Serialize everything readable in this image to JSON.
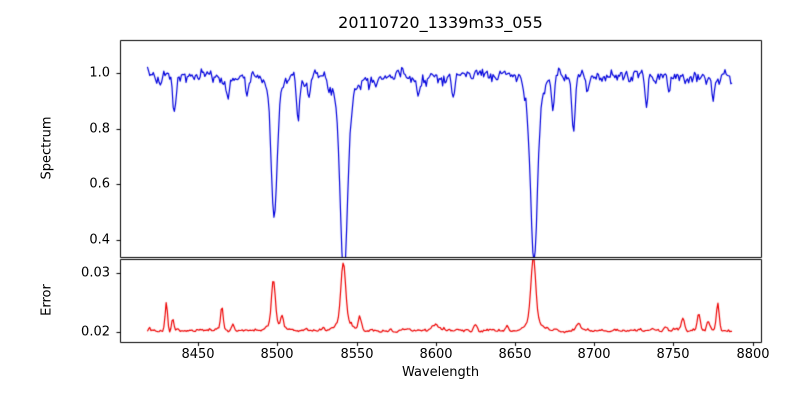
{
  "figure": {
    "background": "#ffffff",
    "axis_color": "#000000"
  },
  "chart_data": [
    {
      "type": "line",
      "name": "spectrum",
      "title": "20110720_1339m33_055",
      "ylabel": "Spectrum",
      "line_color": "#0000dd",
      "xlim": [
        8400.7,
        8805.3
      ],
      "ylim": [
        0.339,
        1.119
      ],
      "yticks": [
        [
          1.0,
          "1.0"
        ],
        [
          0.8,
          "0.8"
        ],
        [
          0.6,
          "0.6"
        ],
        [
          0.4,
          "0.4"
        ]
      ],
      "show_xticklabels": false,
      "grid": false,
      "x_start": 8418,
      "x_end": 8787,
      "n_points": 500,
      "envelope": [
        [
          8418,
          0.998
        ],
        [
          8428,
          0.99
        ],
        [
          8440,
          0.985
        ],
        [
          8452,
          0.99
        ],
        [
          8462,
          0.985
        ],
        [
          8475,
          0.99
        ],
        [
          8488,
          0.998
        ],
        [
          8508,
          0.995
        ],
        [
          8525,
          0.99
        ],
        [
          8535,
          0.995
        ],
        [
          8548,
          0.99
        ],
        [
          8558,
          0.985
        ],
        [
          8570,
          0.99
        ],
        [
          8582,
          0.995
        ],
        [
          8595,
          0.99
        ],
        [
          8610,
          0.992
        ],
        [
          8625,
          0.998
        ],
        [
          8640,
          0.995
        ],
        [
          8652,
          0.998
        ],
        [
          8668,
          0.99
        ],
        [
          8680,
          0.99
        ],
        [
          8700,
          0.988
        ],
        [
          8715,
          0.992
        ],
        [
          8730,
          0.99
        ],
        [
          8745,
          0.992
        ],
        [
          8760,
          0.99
        ],
        [
          8775,
          0.992
        ],
        [
          8787,
          0.985
        ]
      ],
      "absorption_lines": [
        {
          "center": 8498.0,
          "depth": 0.45,
          "sigma": 1.8,
          "min_value": 0.545
        },
        {
          "center": 8498.0,
          "depth": 0.06,
          "sigma": 5.0
        },
        {
          "center": 8542.0,
          "depth": 0.62,
          "sigma": 2.2,
          "min_value": 0.37
        },
        {
          "center": 8542.0,
          "depth": 0.1,
          "sigma": 6.0
        },
        {
          "center": 8662.0,
          "depth": 0.58,
          "sigma": 2.1,
          "min_value": 0.42
        },
        {
          "center": 8662.0,
          "depth": 0.09,
          "sigma": 5.5
        },
        {
          "center": 8426.0,
          "depth": 0.05,
          "sigma": 0.8
        },
        {
          "center": 8435.0,
          "depth": 0.13,
          "sigma": 1.0
        },
        {
          "center": 8469.0,
          "depth": 0.1,
          "sigma": 0.9
        },
        {
          "center": 8481.0,
          "depth": 0.08,
          "sigma": 0.9
        },
        {
          "center": 8513.0,
          "depth": 0.15,
          "sigma": 1.0
        },
        {
          "center": 8520.0,
          "depth": 0.08,
          "sigma": 0.8
        },
        {
          "center": 8589.0,
          "depth": 0.08,
          "sigma": 0.9
        },
        {
          "center": 8611.0,
          "depth": 0.09,
          "sigma": 0.9
        },
        {
          "center": 8674.0,
          "depth": 0.13,
          "sigma": 0.9
        },
        {
          "center": 8687.0,
          "depth": 0.19,
          "sigma": 1.1
        },
        {
          "center": 8696.0,
          "depth": 0.06,
          "sigma": 0.8
        },
        {
          "center": 8733.0,
          "depth": 0.1,
          "sigma": 0.9
        },
        {
          "center": 8747.0,
          "depth": 0.06,
          "sigma": 0.8
        },
        {
          "center": 8775.0,
          "depth": 0.08,
          "sigma": 0.9
        }
      ],
      "noise": {
        "sigma": 0.016,
        "seed": 7,
        "up_gain": 1.0,
        "down_gain": 1.5,
        "smooth": 0.45
      }
    },
    {
      "type": "line",
      "name": "error",
      "ylabel": "Error",
      "xlabel": "Wavelength",
      "line_color": "#ee0000",
      "xlim": [
        8400.7,
        8805.3
      ],
      "ylim": [
        0.0183,
        0.0324
      ],
      "yticks": [
        [
          0.03,
          "0.03"
        ],
        [
          0.02,
          "0.02"
        ]
      ],
      "xticks": [
        [
          8450,
          "8450"
        ],
        [
          8500,
          "8500"
        ],
        [
          8550,
          "8550"
        ],
        [
          8600,
          "8600"
        ],
        [
          8650,
          "8650"
        ],
        [
          8700,
          "8700"
        ],
        [
          8750,
          "8750"
        ],
        [
          8800,
          "8800"
        ]
      ],
      "show_xticklabels": true,
      "grid": false,
      "x_start": 8418,
      "x_end": 8787,
      "n_points": 500,
      "baseline": 0.0202,
      "peaks": [
        {
          "center": 8430.0,
          "height": 0.0048,
          "sigma": 0.7,
          "peak_value": 0.025
        },
        {
          "center": 8434.0,
          "height": 0.002,
          "sigma": 0.7
        },
        {
          "center": 8465.0,
          "height": 0.0038,
          "sigma": 0.8,
          "peak_value": 0.024
        },
        {
          "center": 8472.0,
          "height": 0.0012,
          "sigma": 0.8
        },
        {
          "center": 8497.5,
          "height": 0.0076,
          "sigma": 1.2,
          "peak_value": 0.028
        },
        {
          "center": 8498.0,
          "height": 0.0012,
          "sigma": 4.0
        },
        {
          "center": 8503.0,
          "height": 0.0022,
          "sigma": 0.8
        },
        {
          "center": 8541.6,
          "height": 0.0102,
          "sigma": 1.5,
          "peak_value": 0.0308
        },
        {
          "center": 8542.0,
          "height": 0.0015,
          "sigma": 5.0
        },
        {
          "center": 8552.0,
          "height": 0.0022,
          "sigma": 0.9
        },
        {
          "center": 8600.0,
          "height": 0.0008,
          "sigma": 3.0
        },
        {
          "center": 8625.0,
          "height": 0.0012,
          "sigma": 1.0
        },
        {
          "center": 8645.0,
          "height": 0.0008,
          "sigma": 1.0
        },
        {
          "center": 8661.6,
          "height": 0.011,
          "sigma": 1.5,
          "peak_value": 0.0315
        },
        {
          "center": 8662.0,
          "height": 0.0015,
          "sigma": 5.0
        },
        {
          "center": 8690.0,
          "height": 0.001,
          "sigma": 1.5
        },
        {
          "center": 8745.0,
          "height": 0.0008,
          "sigma": 1.0
        },
        {
          "center": 8756.0,
          "height": 0.0022,
          "sigma": 1.0
        },
        {
          "center": 8766.0,
          "height": 0.0028,
          "sigma": 1.0
        },
        {
          "center": 8772.0,
          "height": 0.0015,
          "sigma": 0.8
        },
        {
          "center": 8778.0,
          "height": 0.0044,
          "sigma": 0.8,
          "peak_value": 0.0246
        }
      ],
      "noise": {
        "sigma": 0.00022,
        "seed": 13,
        "up_gain": 1.4,
        "down_gain": 0.8,
        "smooth": 0.45
      }
    }
  ]
}
